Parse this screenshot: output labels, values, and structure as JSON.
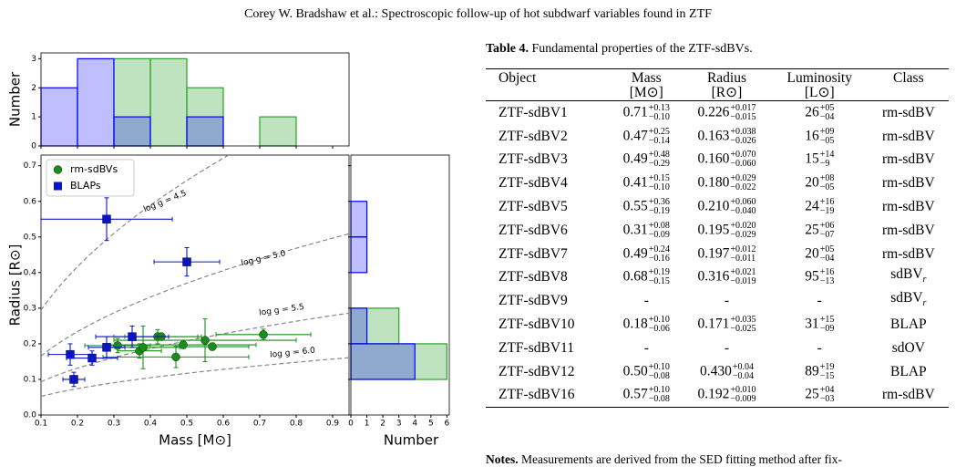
{
  "header": {
    "running_title": "Corey W. Bradshaw  et al.: Spectroscopic follow-up of hot subdwarf variables found in ZTF"
  },
  "chart_data": [
    {
      "type": "scatter",
      "xlabel": "Mass [M⊙]",
      "ylabel": "Radius [R⊙]",
      "xlim": [
        0.1,
        0.945
      ],
      "ylim": [
        0,
        0.73
      ],
      "xticks": [
        0.1,
        0.2,
        0.3,
        0.4,
        0.5,
        0.6,
        0.7,
        0.8,
        0.9
      ],
      "yticks": [
        {
          "value": 0,
          "label": "0.0"
        },
        0.1,
        0.2,
        0.3,
        0.4,
        0.5,
        0.6,
        0.7
      ],
      "legend": "upper left",
      "annotations": [
        {
          "value": 4.5,
          "label": "log g = 4.5"
        },
        {
          "value": 5.0,
          "label": "log g = 5.0"
        },
        {
          "value": 5.5,
          "label": "log g = 5.5"
        },
        {
          "value": 6.0,
          "label": "log g = 6.0"
        }
      ],
      "series": [
        {
          "name": "rm-sdBVs",
          "color": "#1a8c1a",
          "marker": "circle",
          "x": [
            0.31,
            0.37,
            0.38,
            0.42,
            0.43,
            0.47,
            0.49,
            0.55,
            0.57,
            0.71
          ],
          "values": [
            0.195,
            0.18,
            0.19,
            0.22,
            0.22,
            0.163,
            0.197,
            0.21,
            0.192,
            0.226
          ],
          "x_err": [
            0.09,
            0.06,
            0.1,
            0.12,
            0.1,
            0.2,
            0.2,
            0.25,
            0.1,
            0.13
          ],
          "y_err": [
            0.02,
            0.02,
            0.06,
            0.02,
            0.01,
            0.03,
            0.01,
            0.06,
            0.01,
            0.015
          ]
        },
        {
          "name": "BLAPs",
          "color": "#0a14c8",
          "marker": "square",
          "x": [
            0.28,
            0.5,
            0.35,
            0.28,
            0.18,
            0.24,
            0.19
          ],
          "values": [
            0.55,
            0.43,
            0.22,
            0.19,
            0.17,
            0.16,
            0.1
          ],
          "x_err": [
            0.18,
            0.09,
            0.1,
            0.05,
            0.06,
            0.07,
            0.03
          ],
          "y_err": [
            0.06,
            0.04,
            0.03,
            0.03,
            0.03,
            0.02,
            0.02
          ]
        }
      ]
    },
    {
      "type": "histogram",
      "orientation": "vertical",
      "ylabel": "Number",
      "bins": [
        0.1,
        0.2,
        0.3,
        0.4,
        0.5,
        0.6,
        0.7,
        0.8
      ],
      "xlim": [
        0.1,
        0.945
      ],
      "xticks": [
        0.1,
        0.2,
        0.3,
        0.4,
        0.5,
        0.6,
        0.7,
        0.8,
        0.9
      ],
      "ylim": [
        0,
        3.2
      ],
      "yticks": [
        0,
        1,
        2,
        3
      ],
      "series": [
        {
          "name": "rm-sdBVs",
          "color": "#2ca02c",
          "values": [
            0,
            0,
            3,
            3,
            2,
            0,
            1
          ]
        },
        {
          "name": "BLAPs",
          "color": "#0000ff",
          "values": [
            2,
            3,
            1,
            0,
            1,
            0,
            0
          ]
        }
      ]
    },
    {
      "type": "histogram",
      "orientation": "horizontal",
      "xlabel": "Number",
      "bins": [
        0.1,
        0.2,
        0.3,
        0.4,
        0.5,
        0.6
      ],
      "xlim": [
        0,
        6.15
      ],
      "xticks": [
        0,
        1,
        2,
        3,
        4,
        5,
        6
      ],
      "ylim": [
        0,
        0.73
      ],
      "yticks": [
        0,
        0.1,
        0.2,
        0.3,
        0.4,
        0.5,
        0.6,
        0.7
      ],
      "series": [
        {
          "name": "rm-sdBVs",
          "color": "#2ca02c",
          "values": [
            6,
            3,
            0,
            0,
            0
          ]
        },
        {
          "name": "BLAPs",
          "color": "#0000ff",
          "values": [
            4,
            1,
            0,
            1,
            1
          ]
        }
      ]
    }
  ],
  "table": {
    "label": "Table 4.",
    "caption": "Fundamental properties of the ZTF-sdBVs.",
    "columns": [
      {
        "name": "Object"
      },
      {
        "name": "Mass",
        "unit": "[M⊙]"
      },
      {
        "name": "Radius",
        "unit": "[R⊙]"
      },
      {
        "name": "Luminosity",
        "unit": "[L⊙]"
      },
      {
        "name": "Class"
      }
    ],
    "rows": [
      [
        "ZTF-sdBV1",
        {
          "value": "0.71",
          "plus": "+0.13",
          "minus": "−0.10"
        },
        {
          "value": "0.226",
          "plus": "+0.017",
          "minus": "−0.015"
        },
        {
          "value": "26",
          "plus": "+05",
          "minus": "−04"
        },
        "rm-sdBV"
      ],
      [
        "ZTF-sdBV2",
        {
          "value": "0.47",
          "plus": "+0.25",
          "minus": "−0.14"
        },
        {
          "value": "0.163",
          "plus": "+0.038",
          "minus": "−0.026"
        },
        {
          "value": "16",
          "plus": "+09",
          "minus": "−05"
        },
        "rm-sdBV"
      ],
      [
        "ZTF-sdBV3",
        {
          "value": "0.49",
          "plus": "+0.48",
          "minus": "−0.29"
        },
        {
          "value": "0.160",
          "plus": "+0.070",
          "minus": "−0.060"
        },
        {
          "value": "15",
          "plus": "+14",
          "minus": "−9"
        },
        "rm-sdBV"
      ],
      [
        "ZTF-sdBV4",
        {
          "value": "0.41",
          "plus": "+0.15",
          "minus": "−0.10"
        },
        {
          "value": "0.180",
          "plus": "+0.029",
          "minus": "−0.022"
        },
        {
          "value": "20",
          "plus": "+08",
          "minus": "−05"
        },
        "rm-sdBV"
      ],
      [
        "ZTF-sdBV5",
        {
          "value": "0.55",
          "plus": "+0.36",
          "minus": "−0.19"
        },
        {
          "value": "0.210",
          "plus": "+0.060",
          "minus": "−0.040"
        },
        {
          "value": "24",
          "plus": "+16",
          "minus": "−19"
        },
        "rm-sdBV"
      ],
      [
        "ZTF-sdBV6",
        {
          "value": "0.31",
          "plus": "+0.08",
          "minus": "−0.09"
        },
        {
          "value": "0.195",
          "plus": "+0.020",
          "minus": "−0.029"
        },
        {
          "value": "25",
          "plus": "+06",
          "minus": "−07"
        },
        "rm-sdBV"
      ],
      [
        "ZTF-sdBV7",
        {
          "value": "0.49",
          "plus": "+0.24",
          "minus": "−0.16"
        },
        {
          "value": "0.197",
          "plus": "+0.012",
          "minus": "−0.011"
        },
        {
          "value": "20",
          "plus": "+05",
          "minus": "−04"
        },
        "rm-sdBV"
      ],
      [
        "ZTF-sdBV8",
        {
          "value": "0.68",
          "plus": "+0.19",
          "minus": "−0.15"
        },
        {
          "value": "0.316",
          "plus": "+0.021",
          "minus": "−0.019"
        },
        {
          "value": "95",
          "plus": "+16",
          "minus": "−13"
        },
        {
          "value": "sdBV",
          "sub": "r"
        }
      ],
      [
        "ZTF-sdBV9",
        "-",
        "-",
        "-",
        {
          "value": "sdBV",
          "sub": "r"
        }
      ],
      [
        "ZTF-sdBV10",
        {
          "value": "0.18",
          "plus": "+0.10",
          "minus": "−0.06"
        },
        {
          "value": "0.171",
          "plus": "+0.035",
          "minus": "−0.025"
        },
        {
          "value": "31",
          "plus": "+15",
          "minus": "−09"
        },
        "BLAP"
      ],
      [
        "ZTF-sdBV11",
        "-",
        "-",
        "-",
        "sdOV"
      ],
      [
        "ZTF-sdBV12",
        {
          "value": "0.50",
          "plus": "+0.10",
          "minus": "−0.08"
        },
        {
          "value": "0.430",
          "plus": "+0.04",
          "minus": "−0.04"
        },
        {
          "value": "89",
          "plus": "+19",
          "minus": "−15"
        },
        "BLAP"
      ],
      [
        "ZTF-sdBV16",
        {
          "value": "0.57",
          "plus": "+0.10",
          "minus": "−0.08"
        },
        {
          "value": "0.192",
          "plus": "+0.010",
          "minus": "−0.009"
        },
        {
          "value": "25",
          "plus": "+04",
          "minus": "−03"
        },
        "rm-sdBV"
      ]
    ],
    "notes_label": "Notes.",
    "notes": "Measurements are derived from the SED fitting method after fix-"
  }
}
